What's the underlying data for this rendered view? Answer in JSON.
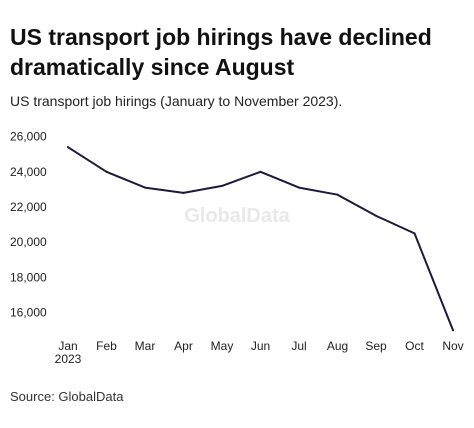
{
  "title": "US transport job hirings have declined dramatically since August",
  "subtitle": "US transport job hirings (January to November 2023).",
  "source": "Source: GlobalData",
  "watermark": "GlobalData",
  "colors": {
    "line": "#1c1a3d",
    "text": "#222222",
    "background": "#ffffff"
  },
  "chart_data": {
    "type": "line",
    "title": "US transport job hirings have declined dramatically since August",
    "subtitle": "US transport job hirings (January to November 2023).",
    "categories": [
      "Jan",
      "Feb",
      "Mar",
      "Apr",
      "May",
      "Jun",
      "Jul",
      "Aug",
      "Sep",
      "Oct",
      "Nov"
    ],
    "category_sublabels": [
      "2023",
      "",
      "",
      "",
      "",
      "",
      "",
      "",
      "",
      "",
      ""
    ],
    "series": [
      {
        "values": [
          25400,
          24000,
          23100,
          22800,
          23200,
          24000,
          23100,
          22700,
          21500,
          20500,
          15000
        ]
      }
    ],
    "y_ticks": [
      16000,
      18000,
      20000,
      22000,
      24000,
      26000
    ],
    "y_tick_labels": [
      "16,000",
      "18,000",
      "20,000",
      "22,000",
      "24,000",
      "26,000"
    ],
    "ylim": [
      15000,
      26000
    ],
    "grid": false,
    "legend": "none"
  }
}
